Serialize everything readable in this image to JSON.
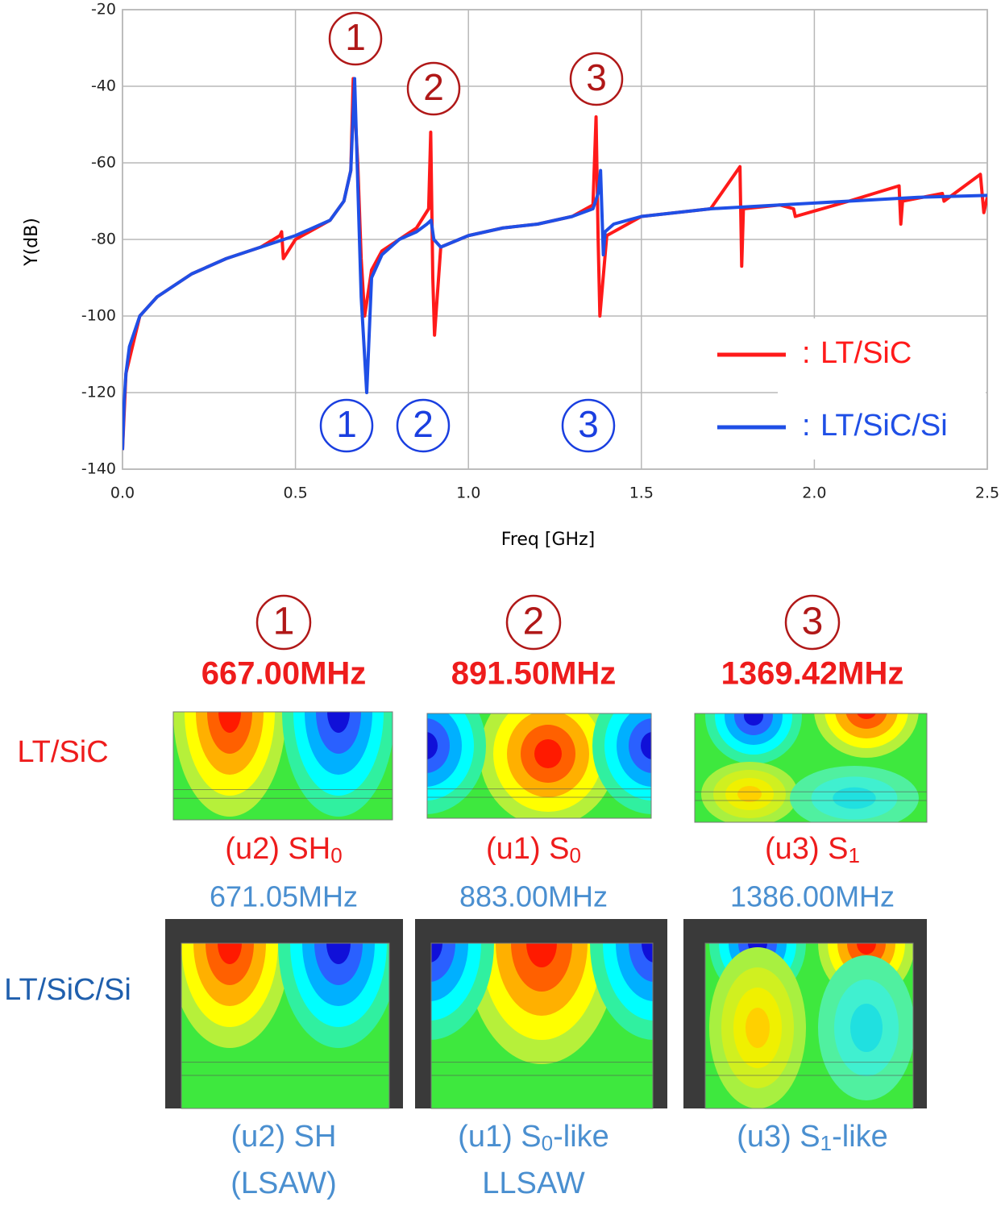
{
  "chart_data": {
    "type": "line",
    "ylabel": "Y(dB)",
    "xlabel": "Freq [GHz]",
    "xlim": [
      0,
      2.5
    ],
    "xticks": [
      {
        "value": 0,
        "label": "0.0"
      },
      0.5,
      {
        "value": 1,
        "label": "1.0"
      },
      1.5,
      {
        "value": 2,
        "label": "2.0"
      },
      2.5
    ],
    "ylim": [
      -140,
      -20
    ],
    "yticks": [
      -20,
      -40,
      -60,
      -80,
      -100,
      -120,
      -140
    ],
    "grid": true,
    "legend_separator": ":",
    "annotations": {
      "red": [
        "1",
        "2",
        "3"
      ],
      "blue": [
        "1",
        "2",
        "3"
      ]
    },
    "series": [
      {
        "name": "LT/SiC",
        "color": "#ff1a1a",
        "x": [
          0.0,
          0.01,
          0.05,
          0.1,
          0.2,
          0.3,
          0.4,
          0.455,
          0.46,
          0.465,
          0.5,
          0.6,
          0.64,
          0.66,
          0.667,
          0.68,
          0.69,
          0.7,
          0.72,
          0.75,
          0.8,
          0.85,
          0.885,
          0.891,
          0.897,
          0.902,
          0.92,
          1.0,
          1.1,
          1.2,
          1.3,
          1.36,
          1.369,
          1.375,
          1.38,
          1.4,
          1.5,
          1.7,
          1.785,
          1.79,
          1.795,
          1.9,
          1.94,
          1.945,
          2.1,
          2.245,
          2.25,
          2.255,
          2.37,
          2.375,
          2.48,
          2.49,
          2.5
        ],
        "values": [
          -135,
          -115,
          -100,
          -95,
          -89,
          -85,
          -82,
          -79,
          -78,
          -85,
          -80,
          -75,
          -70,
          -62,
          -38,
          -60,
          -85,
          -100,
          -88,
          -83,
          -80,
          -77,
          -72,
          -52,
          -90,
          -105,
          -82,
          -79,
          -77,
          -76,
          -74,
          -71,
          -48,
          -80,
          -100,
          -79,
          -74,
          -72,
          -61,
          -87,
          -72,
          -71,
          -72,
          -74,
          -70,
          -66,
          -76,
          -70,
          -68,
          -70,
          -63,
          -73,
          -69
        ]
      },
      {
        "name": "LT/SiC/Si",
        "color": "#1f4fe6",
        "x": [
          0.0,
          0.005,
          0.01,
          0.02,
          0.05,
          0.1,
          0.2,
          0.3,
          0.4,
          0.5,
          0.6,
          0.64,
          0.66,
          0.671,
          0.68,
          0.69,
          0.706,
          0.72,
          0.75,
          0.8,
          0.85,
          0.88,
          0.892,
          0.9,
          0.92,
          1.0,
          1.1,
          1.2,
          1.3,
          1.36,
          1.375,
          1.382,
          1.39,
          1.395,
          1.42,
          1.5,
          1.7,
          1.9,
          2.1,
          2.3,
          2.5
        ],
        "values": [
          -135,
          -122,
          -115,
          -108,
          -100,
          -95,
          -89,
          -85,
          -82,
          -79,
          -75,
          -70,
          -62,
          -38,
          -65,
          -95,
          -120,
          -90,
          -84,
          -80,
          -78,
          -76,
          -75,
          -80,
          -82,
          -79,
          -77,
          -76,
          -74,
          -72,
          -68,
          -62,
          -84,
          -78,
          -76,
          -74,
          -72,
          -71,
          -70,
          -69,
          -68.5
        ]
      }
    ]
  },
  "modes": {
    "row_labels": [
      "LT/SiC",
      "LT/SiC/Si"
    ],
    "columns": [
      {
        "number": "1",
        "lt_sic": {
          "freq": "667.00MHz",
          "caption": "(u2) SH",
          "sub": "0"
        },
        "lt_sic_si": {
          "freq": "671.05MHz",
          "caption": "(u2) SH",
          "line2": "(LSAW)"
        }
      },
      {
        "number": "2",
        "lt_sic": {
          "freq": "891.50MHz",
          "caption": "(u1) S",
          "sub": "0"
        },
        "lt_sic_si": {
          "freq": "883.00MHz",
          "caption": "(u1) S",
          "sub": "0",
          "after": "-like",
          "line2": "LLSAW"
        }
      },
      {
        "number": "3",
        "lt_sic": {
          "freq": "1369.42MHz",
          "caption": "(u3) S",
          "sub": "1"
        },
        "lt_sic_si": {
          "freq": "1386.00MHz",
          "caption": "(u3) S",
          "sub": "1",
          "after": "-like"
        }
      }
    ]
  }
}
